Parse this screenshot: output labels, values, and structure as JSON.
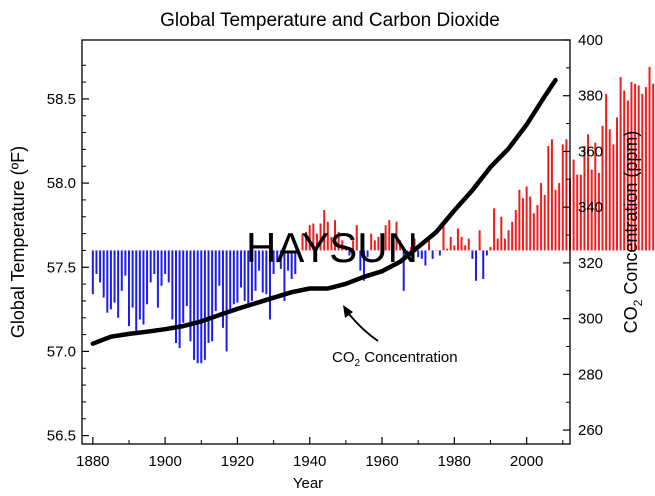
{
  "chart_data": {
    "type": "bar",
    "title": "Global Temperature and Carbon Dioxide",
    "xlabel": "Year",
    "ylabel_left": "Global Temperature (ºF)",
    "ylabel_right_prefix": "CO",
    "ylabel_right_sub": "2",
    "ylabel_right_suffix": " Concentration (ppm)",
    "watermark": "HAYSUN",
    "annotation": {
      "prefix": "CO",
      "sub": "2",
      "suffix": " Concentration",
      "points_to_year": 1950
    },
    "xlim": [
      1877,
      2012
    ],
    "ylim_left": [
      56.45,
      58.85
    ],
    "ylim_right": [
      255,
      400
    ],
    "baseline": 57.6,
    "x_ticks": [
      "1880",
      "1900",
      "1920",
      "1940",
      "1960",
      "1980",
      "2000"
    ],
    "y_ticks_left": [
      "56.5",
      "57.0",
      "57.5",
      "58.0",
      "58.5"
    ],
    "y_ticks_right": [
      "260",
      "280",
      "300",
      "320",
      "340",
      "360",
      "380",
      "400"
    ],
    "colors": {
      "above": "#ee1c1c",
      "below": "#1c1cee",
      "co2": "#000000"
    },
    "series": [
      {
        "name": "Global Temperature",
        "start_year": 1880,
        "values": [
          57.34,
          57.46,
          57.41,
          57.32,
          57.23,
          57.25,
          57.29,
          57.2,
          57.36,
          57.45,
          57.15,
          57.26,
          57.11,
          57.19,
          57.16,
          57.28,
          57.41,
          57.46,
          57.26,
          57.39,
          57.46,
          57.41,
          57.19,
          57.05,
          57.02,
          57.17,
          57.27,
          57.06,
          56.95,
          56.93,
          56.93,
          56.95,
          57.05,
          57.06,
          57.24,
          57.39,
          57.14,
          57.0,
          57.24,
          57.28,
          57.29,
          57.38,
          57.3,
          57.26,
          57.3,
          57.36,
          57.48,
          57.35,
          57.34,
          57.19,
          57.46,
          57.53,
          57.49,
          57.3,
          57.48,
          57.43,
          57.46,
          57.58,
          57.7,
          57.71,
          57.75,
          57.76,
          57.7,
          57.76,
          57.84,
          57.77,
          57.68,
          57.78,
          57.71,
          57.66,
          57.61,
          57.57,
          57.66,
          57.75,
          57.48,
          57.42,
          57.56,
          57.7,
          57.66,
          57.68,
          57.58,
          57.75,
          57.78,
          57.7,
          57.77,
          57.66,
          57.36,
          57.58,
          57.62,
          57.67,
          57.56,
          57.55,
          57.51,
          57.68,
          57.55,
          57.6,
          57.57,
          57.75,
          57.61,
          57.68,
          57.63,
          57.73,
          57.68,
          57.63,
          57.67,
          57.55,
          57.42,
          57.72,
          57.43,
          57.57,
          57.62,
          57.85,
          57.67,
          57.8,
          57.67,
          57.72,
          57.77,
          57.84,
          57.96,
          57.91,
          57.98,
          57.92,
          57.82,
          57.87,
          58.0,
          57.93,
          58.22,
          58.26,
          57.96,
          58.0,
          58.23,
          58.26,
          58.03,
          58.14,
          58.05,
          58.05,
          58.22,
          58.29,
          58.08,
          58.24,
          58.06,
          58.34,
          58.53,
          58.32,
          58.23,
          58.39,
          58.63,
          58.55,
          58.49,
          58.6,
          58.59,
          58.58,
          58.53,
          58.57,
          58.69,
          58.59,
          58.5,
          58.55,
          58.59,
          58.46,
          58.59,
          58.59
        ]
      },
      {
        "name": "CO2 Concentration",
        "type": "line",
        "x": [
          1880,
          1885,
          1890,
          1895,
          1900,
          1905,
          1910,
          1915,
          1920,
          1925,
          1930,
          1935,
          1940,
          1945,
          1950,
          1955,
          1960,
          1965,
          1970,
          1975,
          1980,
          1985,
          1990,
          1995,
          2000,
          2005,
          2008
        ],
        "y": [
          291,
          293.5,
          294.5,
          295.3,
          296.2,
          297.3,
          299,
          301.3,
          303.5,
          305.5,
          307.5,
          309.5,
          310.8,
          310.8,
          312.5,
          315,
          317,
          320.4,
          325.7,
          331.1,
          338.8,
          346.1,
          354.4,
          361,
          369.6,
          379.8,
          385.6
        ]
      }
    ]
  }
}
